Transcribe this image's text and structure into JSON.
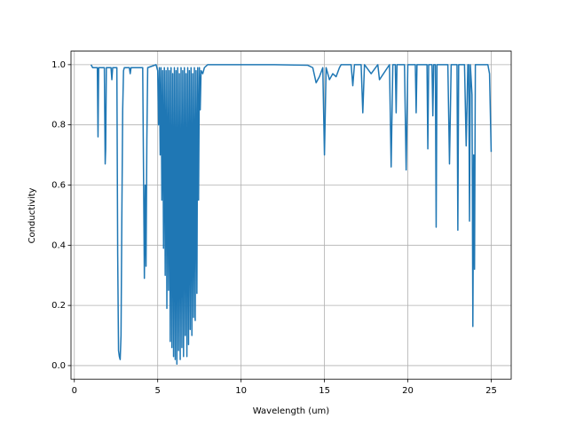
{
  "chart_data": {
    "type": "line",
    "xlabel": "Wavelength (um)",
    "ylabel": "Conductivity",
    "xlim": [
      -0.2,
      26.2
    ],
    "ylim": [
      -0.045,
      1.045
    ],
    "xticks": [
      0,
      5,
      10,
      15,
      20,
      25
    ],
    "yticks": [
      {
        "value": 0,
        "label": "0.0"
      },
      0.2,
      0.4,
      0.6,
      0.8,
      {
        "value": 1,
        "label": "1.0"
      }
    ],
    "grid": true,
    "series": [
      {
        "color": "#1f77b4",
        "x": [
          1.0,
          1.1,
          1.3,
          1.38,
          1.42,
          1.46,
          1.8,
          1.85,
          1.88,
          1.92,
          1.96,
          2.2,
          2.25,
          2.3,
          2.55,
          2.6,
          2.65,
          2.7,
          2.75,
          2.8,
          2.85,
          2.9,
          2.95,
          3.0,
          3.3,
          3.35,
          3.4,
          4.1,
          4.2,
          4.25,
          4.3,
          4.35,
          4.4,
          4.9,
          5.0,
          5.05,
          5.1,
          5.15,
          5.2,
          5.25,
          5.3,
          5.35,
          5.4,
          5.45,
          5.5,
          5.55,
          5.6,
          5.65,
          5.7,
          5.75,
          5.8,
          5.85,
          5.9,
          5.95,
          6.0,
          6.05,
          6.1,
          6.15,
          6.2,
          6.25,
          6.3,
          6.35,
          6.4,
          6.45,
          6.5,
          6.55,
          6.6,
          6.65,
          6.7,
          6.75,
          6.8,
          6.85,
          6.9,
          6.95,
          7.0,
          7.05,
          7.1,
          7.15,
          7.2,
          7.25,
          7.3,
          7.35,
          7.4,
          7.45,
          7.5,
          7.55,
          7.6,
          7.7,
          7.8,
          8.0,
          10.0,
          12.0,
          14.0,
          14.3,
          14.5,
          14.7,
          14.9,
          15.0,
          15.1,
          15.3,
          15.5,
          15.7,
          15.9,
          16.0,
          16.6,
          16.7,
          16.8,
          17.2,
          17.3,
          17.4,
          17.8,
          18.2,
          18.3,
          18.9,
          19.0,
          19.1,
          19.25,
          19.3,
          19.35,
          19.8,
          19.9,
          20.0,
          20.45,
          20.5,
          20.55,
          20.8,
          21.15,
          21.2,
          21.25,
          21.45,
          21.5,
          21.55,
          21.65,
          21.7,
          21.75,
          22.4,
          22.5,
          22.6,
          22.95,
          23.0,
          23.05,
          23.4,
          23.5,
          23.6,
          23.65,
          23.7,
          23.75,
          23.85,
          23.9,
          23.95,
          24.0,
          24.05,
          24.2,
          24.8,
          24.9,
          25.0
        ],
        "values": [
          1.0,
          0.99,
          0.99,
          0.99,
          0.76,
          0.99,
          0.99,
          0.67,
          0.72,
          0.99,
          0.99,
          0.99,
          0.95,
          0.99,
          0.99,
          0.37,
          0.05,
          0.03,
          0.02,
          0.1,
          0.5,
          0.85,
          0.98,
          0.99,
          0.99,
          0.97,
          0.99,
          0.99,
          0.29,
          0.6,
          0.33,
          0.75,
          0.99,
          1.0,
          0.98,
          0.8,
          0.99,
          0.7,
          0.99,
          0.55,
          0.98,
          0.39,
          0.99,
          0.3,
          0.98,
          0.19,
          0.99,
          0.25,
          0.98,
          0.08,
          0.99,
          0.06,
          0.97,
          0.03,
          0.99,
          0.02,
          0.98,
          0.005,
          0.99,
          0.05,
          0.97,
          0.02,
          0.99,
          0.06,
          0.98,
          0.03,
          0.99,
          0.1,
          0.97,
          0.03,
          0.99,
          0.07,
          0.98,
          0.12,
          0.99,
          0.1,
          0.97,
          0.16,
          0.99,
          0.15,
          0.98,
          0.24,
          0.99,
          0.55,
          0.99,
          0.85,
          0.98,
          0.97,
          0.99,
          1.0,
          1.0,
          1.0,
          0.998,
          0.99,
          0.94,
          0.96,
          0.99,
          0.7,
          0.99,
          0.95,
          0.97,
          0.96,
          0.99,
          1.0,
          1.0,
          0.93,
          1.0,
          1.0,
          0.84,
          1.0,
          0.97,
          1.0,
          0.95,
          1.0,
          0.66,
          1.0,
          1.0,
          0.84,
          1.0,
          1.0,
          0.65,
          1.0,
          1.0,
          0.84,
          1.0,
          1.0,
          1.0,
          0.72,
          1.0,
          1.0,
          0.83,
          1.0,
          1.0,
          0.46,
          1.0,
          1.0,
          0.67,
          1.0,
          1.0,
          0.45,
          1.0,
          1.0,
          0.73,
          1.0,
          1.0,
          0.48,
          1.0,
          0.9,
          0.13,
          0.7,
          0.32,
          1.0,
          1.0,
          1.0,
          0.97,
          0.71
        ]
      }
    ]
  }
}
